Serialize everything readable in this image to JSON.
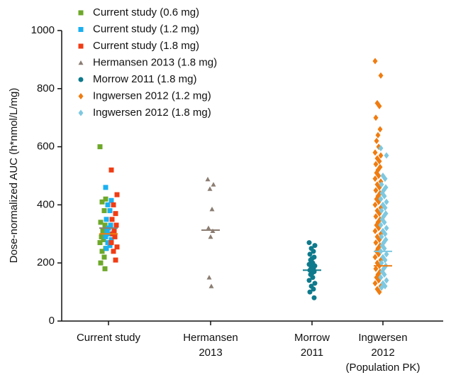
{
  "chart_data": {
    "type": "scatter",
    "ylabel": "Dose-normalized AUC (h*nmol/L/mg)",
    "ylim": [
      0,
      1000
    ],
    "yticks": [
      0,
      200,
      400,
      600,
      800,
      1000
    ],
    "categories": [
      [
        "Current study"
      ],
      [
        "Hermansen",
        "2013"
      ],
      [
        "Morrow",
        "2011"
      ],
      [
        "Ingwersen",
        "2012",
        "(Population PK)"
      ]
    ],
    "series": [
      {
        "name": "Current study (0.6 mg)",
        "color": "#6ea82a",
        "marker": "square",
        "category": 0,
        "values": [
          600,
          420,
          410,
          380,
          340,
          330,
          310,
          290,
          280,
          270,
          250,
          240,
          220,
          200,
          180
        ]
      },
      {
        "name": "Current study (1.2 mg)",
        "color": "#1ab0f0",
        "marker": "square",
        "category": 0,
        "values": [
          460,
          415,
          400,
          380,
          350,
          330,
          320,
          310,
          300,
          290,
          280,
          270,
          260,
          250
        ]
      },
      {
        "name": "Current study (1.8 mg)",
        "color": "#f03c14",
        "marker": "square",
        "category": 0,
        "values": [
          520,
          435,
          400,
          370,
          350,
          330,
          310,
          300,
          290,
          270,
          255,
          240,
          210
        ]
      },
      {
        "name": "Hermansen 2013 (1.8 mg)",
        "color": "#8b7d72",
        "marker": "triangle",
        "category": 1,
        "values": [
          488,
          470,
          455,
          385,
          320,
          310,
          290,
          150,
          120
        ]
      },
      {
        "name": "Morrow 2011 (1.8 mg)",
        "color": "#0e7a8c",
        "marker": "circle",
        "category": 2,
        "values": [
          270,
          260,
          250,
          240,
          230,
          220,
          215,
          210,
          200,
          195,
          190,
          185,
          180,
          175,
          170,
          165,
          160,
          150,
          140,
          130,
          120,
          110,
          100,
          80
        ]
      },
      {
        "name": "Ingwersen 2012 (1.2 mg)",
        "color": "#f07c10",
        "marker": "diamond",
        "category": 3,
        "values": [
          895,
          845,
          750,
          740,
          700,
          660,
          640,
          620,
          600,
          580,
          570,
          560,
          550,
          540,
          530,
          520,
          510,
          500,
          490,
          480,
          470,
          460,
          450,
          440,
          430,
          420,
          410,
          400,
          390,
          380,
          370,
          360,
          350,
          340,
          330,
          320,
          310,
          300,
          290,
          280,
          270,
          260,
          250,
          240,
          230,
          220,
          210,
          200,
          190,
          180,
          170,
          160,
          150,
          140,
          130,
          120,
          110,
          100
        ]
      },
      {
        "name": "Ingwersen 2012 (1.8 mg)",
        "color": "#7ec8e0",
        "marker": "diamond",
        "category": 3,
        "values": [
          595,
          570,
          500,
          490,
          470,
          460,
          450,
          440,
          430,
          420,
          410,
          400,
          390,
          380,
          370,
          360,
          350,
          340,
          330,
          320,
          310,
          300,
          290,
          280,
          270,
          260,
          250,
          240,
          230,
          220,
          210,
          200,
          190,
          180,
          170,
          160,
          150,
          140,
          130,
          120,
          115
        ]
      }
    ],
    "summary_lines": [
      {
        "category": 0,
        "value": 320,
        "color": "#8b7d72"
      },
      {
        "category": 0,
        "value": 300,
        "color": "#f07c10"
      },
      {
        "category": 1,
        "value": 313,
        "color": "#8b7d72"
      },
      {
        "category": 2,
        "value": 175,
        "color": "#0e7a8c"
      },
      {
        "category": 3,
        "value": 190,
        "color": "#f07c10"
      },
      {
        "category": 3,
        "value": 240,
        "color": "#7ec8e0"
      }
    ]
  }
}
